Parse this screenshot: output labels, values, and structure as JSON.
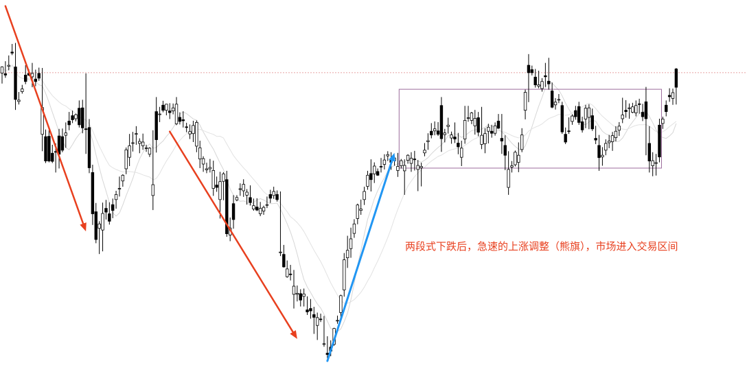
{
  "chart_data": {
    "type": "candlestick",
    "title": "",
    "xlabel": "",
    "ylabel": "",
    "grid": false,
    "axes_visible": false,
    "ylim": [
      0,
      100
    ],
    "reference_level": 84.8,
    "range_box": {
      "from_bar": 119,
      "to_bar": 196,
      "high": 79.9,
      "low": 56.6
    },
    "annotation": "两段式下跌后，急速的上涨调整（熊旗），市场进入交易区间",
    "arrows": [
      {
        "name": "first-decline",
        "color": "#e8401f",
        "from": [
          1,
          104.5
        ],
        "to": [
          25,
          37.9
        ]
      },
      {
        "name": "second-decline",
        "color": "#e8401f",
        "from": [
          50,
          67.4
        ],
        "to": [
          88,
          6.1
        ]
      },
      {
        "name": "rally",
        "color": "#2196f3",
        "from": [
          97,
          -0.4
        ],
        "to": [
          117,
          61.1
        ]
      }
    ],
    "candles": [
      [
        84.7,
        86.7,
        81.6,
        86.5
      ],
      [
        84.5,
        88.2,
        83.3,
        84.1
      ],
      [
        86.7,
        89.9,
        85.5,
        87.0
      ],
      [
        90.9,
        93.3,
        90.0,
        90.6
      ],
      [
        86.5,
        93.6,
        73.8,
        76.9
      ],
      [
        76.3,
        79.1,
        75.4,
        76.7
      ],
      [
        79.2,
        81.2,
        78.6,
        80.0
      ],
      [
        84.1,
        87.0,
        81.4,
        82.2
      ],
      [
        84.6,
        85.8,
        83.8,
        84.1
      ],
      [
        83.6,
        87.7,
        80.5,
        84.6
      ],
      [
        82.9,
        85.7,
        80.8,
        82.2
      ],
      [
        84.6,
        86.3,
        82.4,
        83.2
      ],
      [
        66.6,
        86.2,
        61.6,
        74.5
      ],
      [
        65.9,
        68.0,
        58.1,
        58.7
      ],
      [
        66.0,
        67.8,
        58.3,
        58.7
      ],
      [
        61.0,
        63.5,
        58.1,
        58.6
      ],
      [
        61.5,
        63.9,
        55.3,
        61.3
      ],
      [
        66.1,
        68.2,
        56.5,
        60.7
      ],
      [
        65.9,
        68.3,
        61.3,
        61.9
      ],
      [
        66.3,
        70.1,
        62.6,
        67.0
      ],
      [
        70.5,
        73.2,
        67.8,
        69.4
      ],
      [
        72.1,
        73.6,
        69.9,
        70.9
      ],
      [
        71.2,
        72.7,
        70.4,
        72.4
      ],
      [
        74.3,
        76.6,
        68.6,
        69.4
      ],
      [
        74.4,
        76.8,
        66.9,
        68.5
      ],
      [
        68.2,
        84.6,
        60.8,
        68.0
      ],
      [
        68.6,
        71.1,
        55.1,
        56.7
      ],
      [
        55.3,
        57.6,
        39.8,
        43.1
      ],
      [
        43.7,
        46.3,
        34.4,
        35.5
      ],
      [
        38.8,
        40.9,
        31.2,
        40.1
      ],
      [
        38.3,
        46.4,
        32.0,
        43.2
      ],
      [
        44.7,
        47.2,
        41.4,
        43.6
      ],
      [
        43.1,
        46.5,
        39.9,
        40.9
      ],
      [
        45.8,
        47.6,
        41.8,
        44.1
      ],
      [
        47.3,
        49.9,
        44.6,
        48.8
      ],
      [
        50.5,
        54.1,
        48.2,
        50.6
      ],
      [
        52.8,
        54.8,
        51.1,
        54.5
      ],
      [
        56.4,
        62.7,
        54.8,
        62.0
      ],
      [
        59.8,
        66.7,
        57.2,
        63.2
      ],
      [
        64.1,
        67.3,
        61.5,
        64.1
      ],
      [
        66.7,
        69.0,
        63.5,
        66.8
      ],
      [
        63.9,
        65.4,
        61.0,
        64.5
      ],
      [
        63.2,
        66.8,
        62.0,
        64.3
      ],
      [
        62.6,
        63.5,
        61.4,
        62.6
      ],
      [
        60.7,
        62.8,
        59.9,
        62.5
      ],
      [
        48.5,
        67.8,
        44.2,
        51.7
      ],
      [
        73.3,
        77.6,
        61.2,
        65.0
      ],
      [
        72.5,
        74.7,
        70.2,
        72.6
      ],
      [
        75.2,
        76.5,
        73.1,
        73.7
      ],
      [
        73.7,
        75.6,
        72.2,
        75.5
      ],
      [
        73.5,
        75.8,
        71.1,
        73.0
      ],
      [
        73.5,
        75.7,
        72.5,
        74.4
      ],
      [
        69.7,
        77.6,
        69.3,
        75.5
      ],
      [
        71.6,
        73.1,
        69.5,
        70.4
      ],
      [
        70.9,
        73.4,
        68.6,
        70.6
      ],
      [
        68.8,
        70.0,
        67.2,
        68.6
      ],
      [
        66.7,
        69.5,
        65.2,
        67.4
      ],
      [
        66.8,
        70.6,
        64.3,
        69.2
      ],
      [
        63.1,
        70.7,
        61.3,
        70.1
      ],
      [
        59.3,
        64.7,
        56.6,
        62.6
      ],
      [
        57.8,
        60.1,
        55.5,
        59.4
      ],
      [
        56.1,
        58.2,
        55.1,
        56.4
      ],
      [
        56.4,
        59.3,
        55.3,
        56.8
      ],
      [
        50.6,
        58.8,
        48.4,
        55.9
      ],
      [
        51.6,
        54.1,
        49.6,
        50.9
      ],
      [
        47.3,
        55.5,
        41.7,
        52.6
      ],
      [
        52.7,
        55.4,
        47.1,
        54.9
      ],
      [
        53.2,
        55.8,
        36.3,
        37.2
      ],
      [
        36.8,
        42.0,
        35.0,
        38.9
      ],
      [
        46.1,
        48.6,
        38.7,
        41.4
      ],
      [
        47.2,
        48.6,
        46.8,
        47.9
      ],
      [
        50.4,
        52.1,
        48.4,
        50.5
      ],
      [
        49.9,
        53.3,
        48.1,
        51.8
      ],
      [
        48.6,
        50.4,
        45.8,
        49.5
      ],
      [
        47.9,
        51.5,
        45.6,
        46.4
      ],
      [
        44.5,
        47.6,
        44.0,
        45.5
      ],
      [
        45.1,
        47.7,
        43.9,
        44.2
      ],
      [
        43.1,
        46.6,
        42.4,
        44.7
      ],
      [
        43.9,
        45.5,
        42.8,
        45.0
      ],
      [
        45.6,
        48.2,
        44.8,
        45.8
      ],
      [
        48.8,
        50.2,
        46.3,
        47.7
      ],
      [
        48.5,
        51.1,
        47.5,
        49.7
      ],
      [
        48.8,
        50.0,
        46.7,
        47.3
      ],
      [
        31.8,
        49.7,
        30.6,
        31.8
      ],
      [
        31.1,
        33.9,
        27.2,
        27.4
      ],
      [
        24.5,
        29.3,
        24.2,
        26.8
      ],
      [
        25.3,
        28.0,
        23.4,
        25.2
      ],
      [
        19.3,
        26.5,
        15.1,
        21.7
      ],
      [
        19.3,
        21.9,
        17.2,
        19.6
      ],
      [
        19.5,
        20.8,
        15.7,
        17.6
      ],
      [
        18.7,
        21.0,
        15.7,
        19.4
      ],
      [
        14.7,
        18.7,
        13.2,
        14.1
      ],
      [
        15.1,
        17.9,
        12.1,
        14.4
      ],
      [
        13.3,
        15.6,
        7.6,
        12.5
      ],
      [
        10.1,
        13.9,
        5.8,
        12.4
      ],
      [
        12.0,
        13.6,
        11.1,
        11.8
      ],
      [
        4.6,
        12.9,
        3.8,
        4.7
      ],
      [
        1.9,
        6.9,
        0.4,
        1.5
      ],
      [
        3.7,
        5.7,
        1.0,
        2.5
      ],
      [
        4.5,
        9.4,
        4.1,
        9.2
      ],
      [
        11.4,
        13.0,
        10.6,
        11.6
      ],
      [
        13.9,
        19.2,
        11.7,
        18.9
      ],
      [
        20.6,
        31.5,
        18.6,
        29.5
      ],
      [
        30.1,
        36.6,
        27.1,
        32.3
      ],
      [
        32.8,
        39.0,
        30.1,
        35.7
      ],
      [
        37.3,
        41.5,
        36.0,
        40.1
      ],
      [
        41.7,
        46.1,
        40.0,
        45.7
      ],
      [
        44.1,
        47.3,
        42.8,
        44.5
      ],
      [
        47.3,
        51.1,
        45.7,
        49.7
      ],
      [
        51.2,
        55.8,
        50.2,
        54.5
      ],
      [
        55.0,
        59.2,
        49.7,
        53.2
      ],
      [
        54.9,
        58.3,
        52.2,
        57.2
      ],
      [
        55.6,
        56.5,
        54.3,
        54.5
      ],
      [
        57.1,
        59.6,
        55.3,
        56.9
      ],
      [
        57.7,
        60.7,
        56.2,
        59.0
      ],
      [
        60.2,
        61.6,
        58.7,
        60.6
      ],
      [
        59.0,
        61.3,
        56.1,
        58.3
      ],
      [
        58.8,
        60.1,
        57.3,
        59.6
      ],
      [
        55.9,
        61.1,
        54.0,
        57.1
      ],
      [
        57.3,
        59.3,
        56.5,
        58.8
      ],
      [
        55.8,
        59.2,
        48.7,
        57.4
      ],
      [
        58.9,
        60.7,
        57.9,
        60.4
      ],
      [
        58.0,
        61.3,
        55.5,
        59.5
      ],
      [
        59.3,
        61.7,
        55.9,
        59.1
      ],
      [
        56.2,
        59.0,
        49.8,
        57.4
      ],
      [
        56.7,
        58.2,
        51.2,
        57.1
      ],
      [
        61.1,
        64.0,
        60.1,
        61.9
      ],
      [
        64.4,
        66.9,
        62.0,
        64.7
      ],
      [
        67.5,
        69.9,
        65.4,
        66.4
      ],
      [
        67.6,
        70.4,
        66.3,
        68.2
      ],
      [
        67.6,
        70.2,
        66.1,
        66.6
      ],
      [
        75.1,
        77.6,
        61.4,
        65.3
      ],
      [
        66.5,
        68.2,
        64.2,
        67.0
      ],
      [
        68.9,
        71.5,
        66.8,
        69.3
      ],
      [
        65.5,
        67.4,
        63.8,
        66.4
      ],
      [
        65.8,
        70.1,
        64.0,
        65.2
      ],
      [
        64.0,
        67.0,
        60.7,
        62.9
      ],
      [
        59.8,
        64.7,
        57.2,
        62.5
      ],
      [
        65.2,
        75.0,
        63.8,
        70.7
      ],
      [
        71.5,
        75.0,
        70.3,
        71.5
      ],
      [
        70.7,
        73.2,
        69.6,
        72.9
      ],
      [
        69.1,
        73.8,
        66.5,
        71.3
      ],
      [
        71.5,
        73.2,
        66.0,
        67.2
      ],
      [
        63.6,
        74.7,
        62.2,
        66.3
      ],
      [
        63.8,
        68.4,
        61.0,
        66.8
      ],
      [
        67.5,
        69.7,
        63.9,
        68.7
      ],
      [
        67.5,
        69.4,
        65.6,
        66.9
      ],
      [
        66.9,
        70.1,
        66.2,
        69.1
      ],
      [
        70.5,
        72.6,
        68.2,
        68.4
      ],
      [
        65.4,
        72.6,
        60.8,
        64.6
      ],
      [
        63.3,
        66.3,
        56.0,
        60.4
      ],
      [
        50.9,
        61.6,
        48.7,
        56.2
      ],
      [
        56.9,
        58.7,
        55.3,
        57.3
      ],
      [
        57.6,
        61.8,
        57.1,
        61.3
      ],
      [
        58.3,
        64.2,
        55.4,
        60.4
      ],
      [
        62.1,
        68.4,
        61.3,
        66.4
      ],
      [
        73.7,
        79.8,
        71.0,
        79.0
      ],
      [
        87.0,
        90.3,
        76.1,
        84.8
      ],
      [
        85.7,
        86.9,
        84.0,
        84.8
      ],
      [
        83.5,
        85.9,
        80.4,
        81.2
      ],
      [
        80.8,
        85.4,
        80.2,
        81.2
      ],
      [
        80.1,
        83.2,
        79.2,
        82.2
      ],
      [
        83.9,
        87.7,
        80.6,
        83.6
      ],
      [
        82.3,
        89.2,
        79.8,
        81.5
      ],
      [
        79.4,
        81.9,
        74.3,
        74.6
      ],
      [
        75.3,
        77.3,
        73.9,
        76.1
      ],
      [
        76.8,
        78.5,
        75.8,
        76.9
      ],
      [
        75.1,
        76.2,
        66.7,
        67.3
      ],
      [
        66.6,
        68.6,
        63.7,
        64.3
      ],
      [
        67.6,
        71.6,
        66.7,
        67.5
      ],
      [
        70.4,
        72.5,
        69.4,
        72.0
      ],
      [
        73.6,
        75.0,
        70.9,
        71.8
      ],
      [
        74.8,
        76.2,
        69.4,
        70.1
      ],
      [
        70.3,
        71.8,
        67.1,
        67.9
      ],
      [
        71.1,
        75.3,
        68.4,
        74.3
      ],
      [
        71.6,
        75.5,
        68.1,
        74.4
      ],
      [
        72.1,
        74.2,
        67.6,
        68.2
      ],
      [
        65.4,
        69.1,
        63.7,
        64.9
      ],
      [
        63.3,
        66.4,
        55.8,
        59.7
      ],
      [
        59.9,
        62.8,
        57.3,
        60.4
      ],
      [
        61.9,
        65.1,
        60.4,
        63.9
      ],
      [
        64.1,
        66.4,
        62.5,
        64.6
      ],
      [
        64.4,
        67.3,
        61.7,
        66.2
      ],
      [
        65.6,
        69.0,
        64.5,
        67.5
      ],
      [
        67.8,
        70.2,
        66.1,
        69.0
      ],
      [
        71.2,
        77.4,
        69.9,
        72.3
      ],
      [
        73.7,
        76.7,
        71.5,
        73.3
      ],
      [
        74.2,
        75.7,
        71.2,
        74.4
      ],
      [
        73.1,
        75.9,
        72.8,
        74.7
      ],
      [
        72.9,
        76.6,
        71.9,
        75.1
      ],
      [
        75.6,
        77.1,
        72.7,
        75.5
      ],
      [
        73.1,
        75.6,
        70.5,
        71.8
      ],
      [
        76.2,
        80.6,
        60.4,
        71.2
      ],
      [
        63.9,
        69.0,
        55.3,
        58.7
      ],
      [
        57.3,
        61.3,
        54.2,
        58.8
      ],
      [
        58.2,
        60.8,
        54.4,
        58.2
      ],
      [
        69.3,
        71.2,
        58.3,
        59.9
      ],
      [
        69.8,
        71.8,
        68.2,
        71.1
      ],
      [
        75.2,
        76.6,
        71.9,
        73.3
      ],
      [
        78.1,
        80.2,
        76.2,
        77.7
      ],
      [
        77.2,
        80.1,
        75.3,
        78.9
      ],
      [
        85.9,
        86.2,
        75.4,
        80.5
      ]
    ]
  },
  "colors": {
    "candle": "#000000",
    "arrow_down": "#e8401f",
    "arrow_up": "#2196f3",
    "box": "#9b6a9b",
    "level": "#e8a0a0",
    "ma": "#cfcfcf",
    "text": "#e8401f"
  }
}
